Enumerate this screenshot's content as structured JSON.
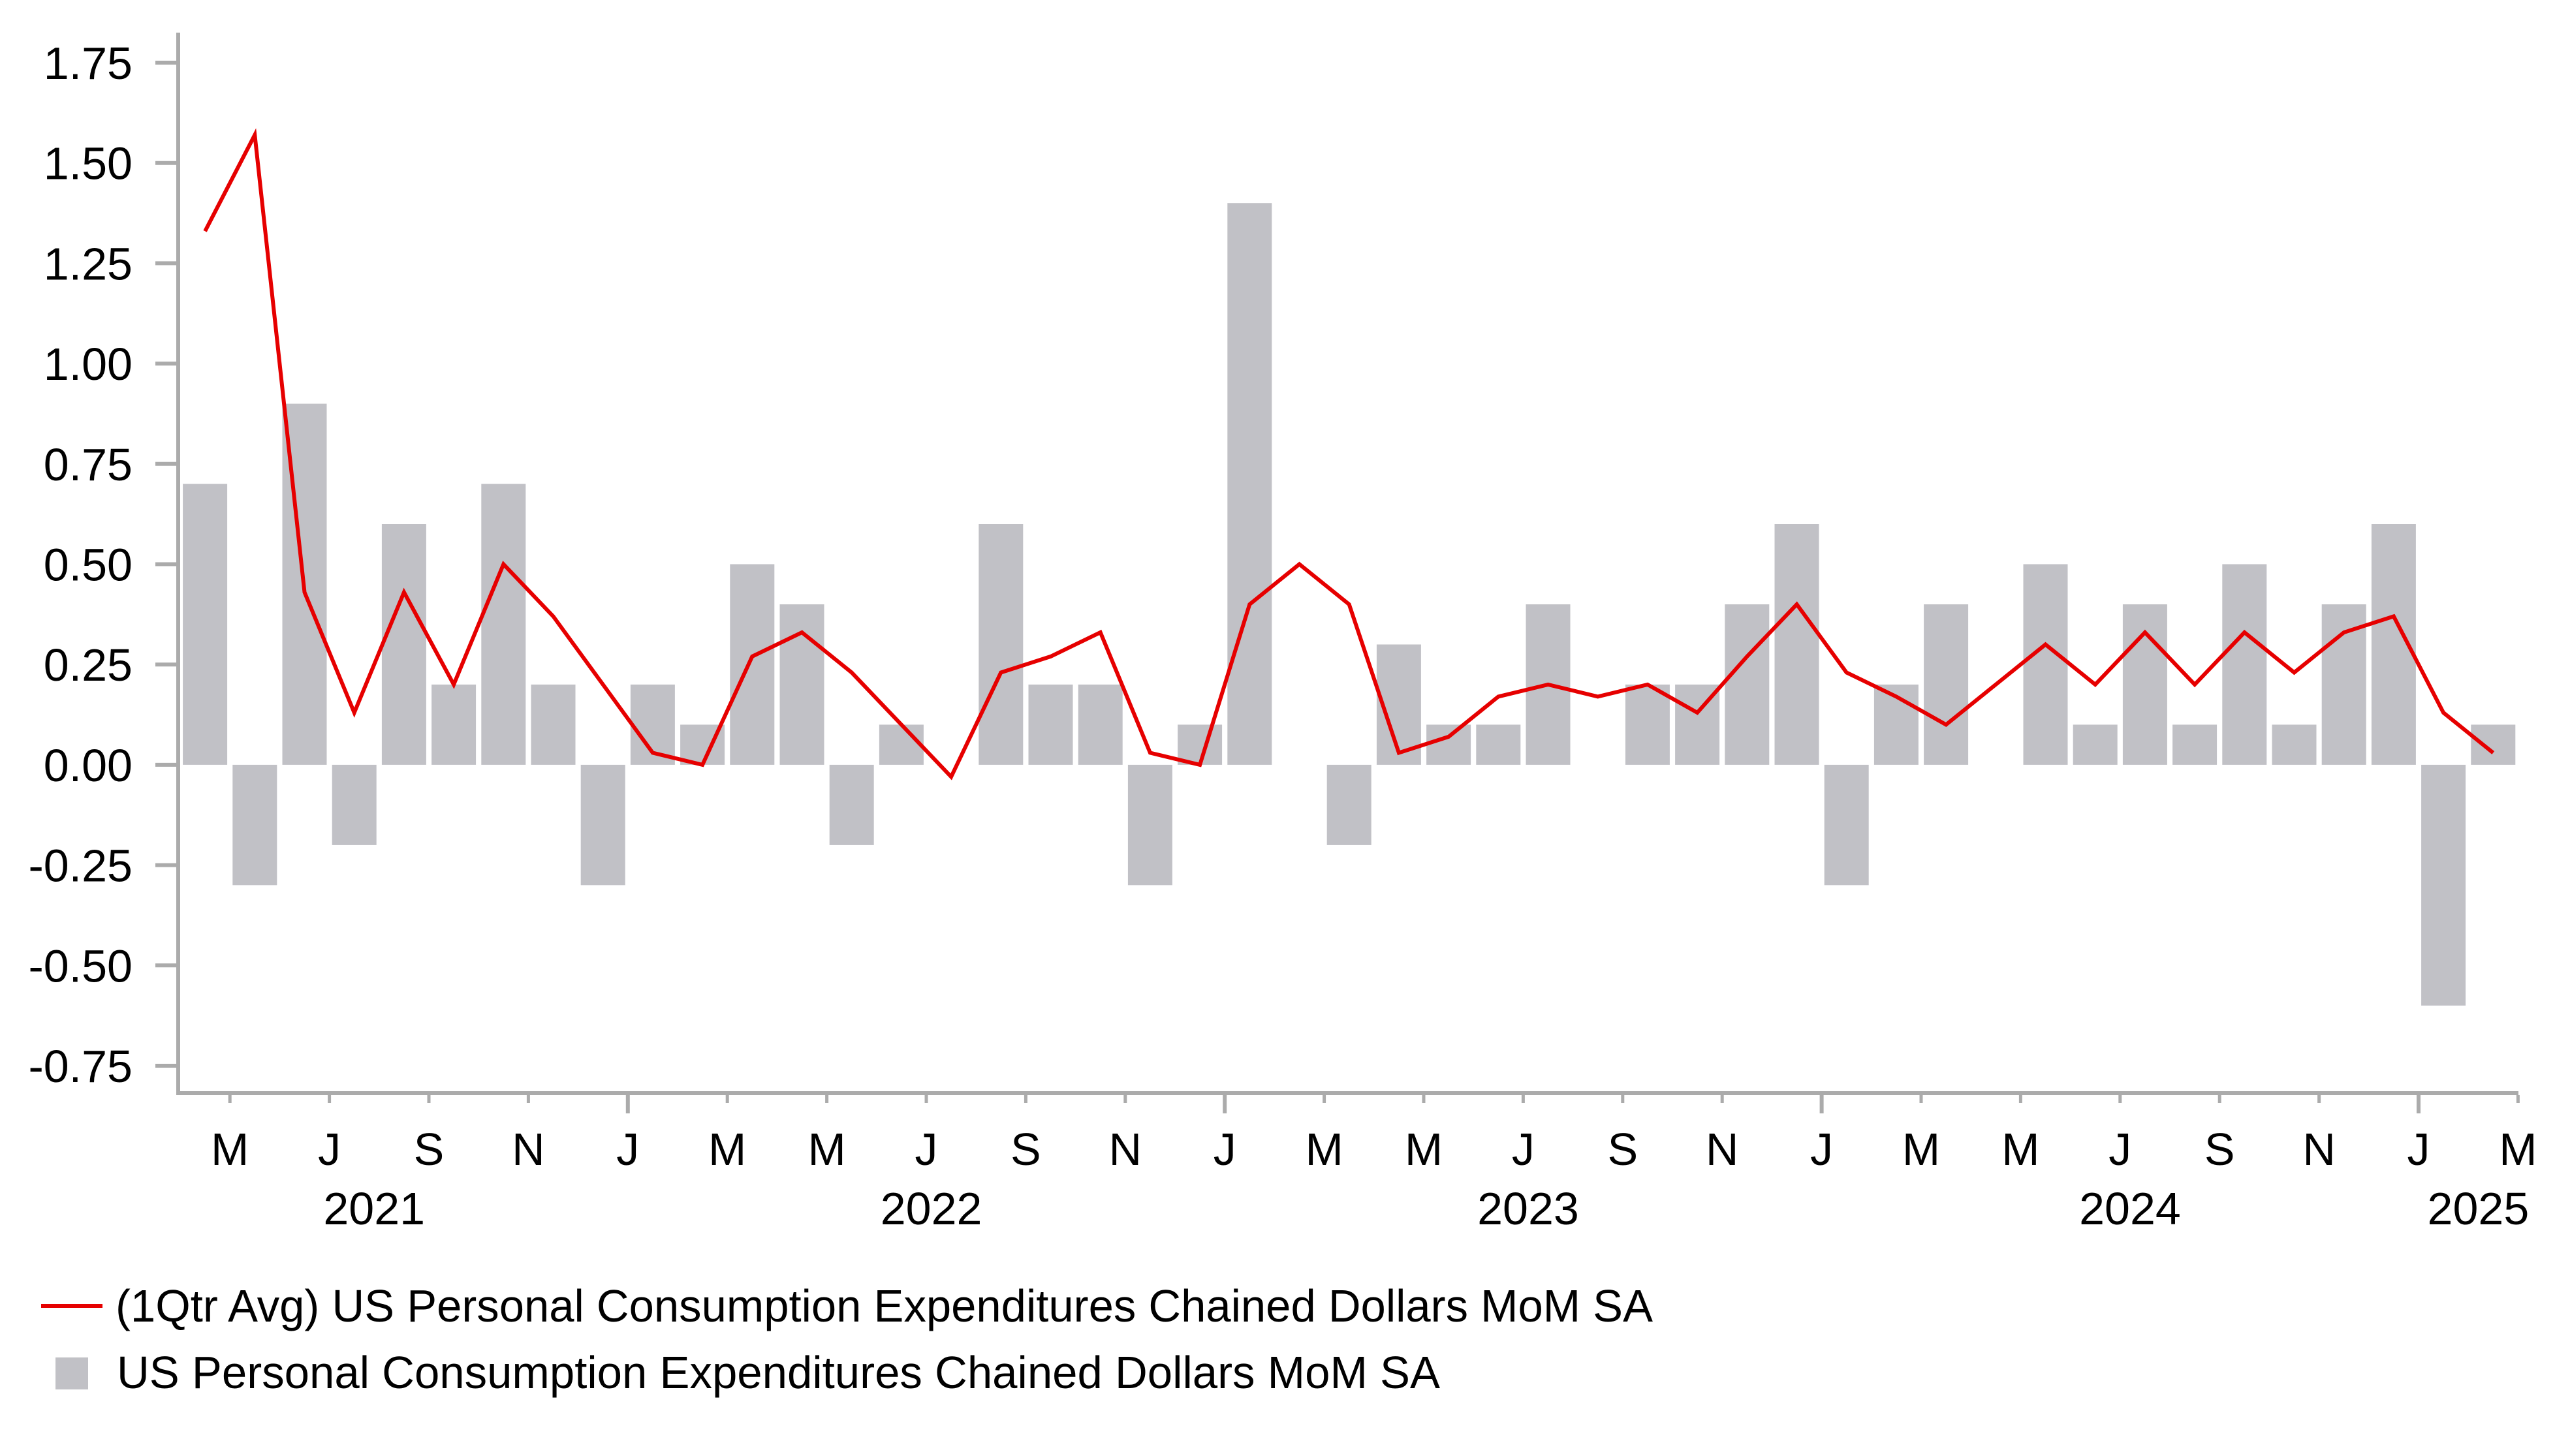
{
  "chart_data": {
    "type": "bar",
    "title": "",
    "xlabel": "",
    "ylabel": "",
    "ylim": [
      -0.75,
      1.75
    ],
    "yticks": [
      "1.75",
      "1.50",
      "1.25",
      "1.00",
      "0.75",
      "0.50",
      "0.25",
      "0.00",
      "-0.25",
      "-0.50",
      "-0.75"
    ],
    "ytick_values": [
      1.75,
      1.5,
      1.25,
      1.0,
      0.75,
      0.5,
      0.25,
      0.0,
      -0.25,
      -0.5,
      -0.75
    ],
    "grid": false,
    "x_start": "2021-04",
    "x_end": "2025-03",
    "categories": [
      "2021-04",
      "2021-05",
      "2021-06",
      "2021-07",
      "2021-08",
      "2021-09",
      "2021-10",
      "2021-11",
      "2021-12",
      "2022-01",
      "2022-02",
      "2022-03",
      "2022-04",
      "2022-05",
      "2022-06",
      "2022-07",
      "2022-08",
      "2022-09",
      "2022-10",
      "2022-11",
      "2022-12",
      "2023-01",
      "2023-02",
      "2023-03",
      "2023-04",
      "2023-05",
      "2023-06",
      "2023-07",
      "2023-08",
      "2023-09",
      "2023-10",
      "2023-11",
      "2023-12",
      "2024-01",
      "2024-02",
      "2024-03",
      "2024-04",
      "2024-05",
      "2024-06",
      "2024-07",
      "2024-08",
      "2024-09",
      "2024-10",
      "2024-11",
      "2024-12",
      "2025-01",
      "2025-02"
    ],
    "month_ticks": [
      {
        "month_index": 1,
        "label": "M"
      },
      {
        "month_index": 3,
        "label": "J"
      },
      {
        "month_index": 5,
        "label": "S"
      },
      {
        "month_index": 7,
        "label": "N"
      },
      {
        "month_index": 9,
        "label": "J",
        "year_start": true
      },
      {
        "month_index": 11,
        "label": "M"
      },
      {
        "month_index": 13,
        "label": "M"
      },
      {
        "month_index": 15,
        "label": "J"
      },
      {
        "month_index": 17,
        "label": "S"
      },
      {
        "month_index": 19,
        "label": "N"
      },
      {
        "month_index": 21,
        "label": "J",
        "year_start": true
      },
      {
        "month_index": 23,
        "label": "M"
      },
      {
        "month_index": 25,
        "label": "M"
      },
      {
        "month_index": 27,
        "label": "J"
      },
      {
        "month_index": 29,
        "label": "S"
      },
      {
        "month_index": 31,
        "label": "N"
      },
      {
        "month_index": 33,
        "label": "J",
        "year_start": true
      },
      {
        "month_index": 35,
        "label": "M"
      },
      {
        "month_index": 37,
        "label": "M"
      },
      {
        "month_index": 39,
        "label": "J"
      },
      {
        "month_index": 41,
        "label": "S"
      },
      {
        "month_index": 43,
        "label": "N"
      },
      {
        "month_index": 45,
        "label": "J",
        "year_start": true
      },
      {
        "month_index": 47,
        "label": "M"
      }
    ],
    "year_labels": [
      {
        "label": "2021",
        "month_position": 3.9
      },
      {
        "label": "2022",
        "month_position": 15.1
      },
      {
        "label": "2023",
        "month_position": 27.1
      },
      {
        "label": "2024",
        "month_position": 39.2
      },
      {
        "label": "2025",
        "month_position": 46.2
      }
    ],
    "series": [
      {
        "name": "(1Qtr Avg) US Personal Consumption Expenditures Chained Dollars MoM SA",
        "type": "line",
        "color": "#E60000",
        "values": [
          1.33,
          1.57,
          0.43,
          0.13,
          0.43,
          0.2,
          0.5,
          0.37,
          0.2,
          0.03,
          0.0,
          0.27,
          0.33,
          0.23,
          0.1,
          -0.03,
          0.23,
          0.27,
          0.33,
          0.03,
          0.0,
          0.4,
          0.5,
          0.4,
          0.03,
          0.07,
          0.17,
          0.2,
          0.17,
          0.2,
          0.13,
          0.27,
          0.4,
          0.23,
          0.17,
          0.1,
          0.2,
          0.3,
          0.2,
          0.33,
          0.2,
          0.33,
          0.23,
          0.33,
          0.37,
          0.13,
          0.03
        ]
      },
      {
        "name": "US Personal Consumption Expenditures Chained Dollars MoM SA",
        "type": "bar",
        "color": "#C1C1C6",
        "values": [
          0.7,
          -0.3,
          0.9,
          -0.2,
          0.6,
          0.2,
          0.7,
          0.2,
          -0.3,
          0.2,
          0.1,
          0.5,
          0.4,
          -0.2,
          0.1,
          0.0,
          0.6,
          0.2,
          0.2,
          -0.3,
          0.1,
          1.4,
          0.0,
          -0.2,
          0.3,
          0.1,
          0.1,
          0.4,
          0.0,
          0.2,
          0.2,
          0.4,
          0.6,
          -0.3,
          0.2,
          0.4,
          0.0,
          0.5,
          0.1,
          0.4,
          0.1,
          0.5,
          0.1,
          0.4,
          0.6,
          -0.6,
          0.1
        ]
      }
    ],
    "legend": {
      "position": "bottom-left",
      "entries": [
        {
          "label": "(1Qtr Avg) US Personal Consumption Expenditures Chained Dollars MoM SA",
          "marker": "line",
          "color": "#E60000"
        },
        {
          "label": "US Personal Consumption Expenditures Chained Dollars MoM SA",
          "marker": "square",
          "color": "#C1C1C6"
        }
      ]
    }
  }
}
